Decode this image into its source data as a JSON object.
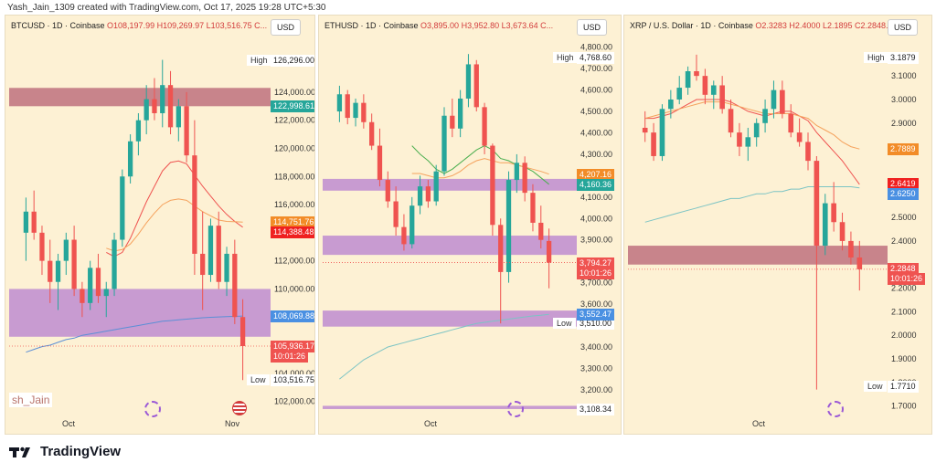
{
  "header": "Yash_Jain_1309 created with TradingView.com, Oct 17, 2025 19:28 UTC+5:30",
  "footer": {
    "brand": "TradingView",
    "signature": "sh_Jain"
  },
  "colors": {
    "panel_bg": "#fdf1d4",
    "up": "#26a69a",
    "down": "#ef5350",
    "zone_red": "#b65f73",
    "zone_purple": "#b57ed0"
  },
  "panels": [
    {
      "title_prefix": "BTCUSD · 1D · Coinbase ",
      "ohlc": "O108,197.99 H109,269.97 L103,516.75 C...",
      "currency": "USD",
      "y_ticks": [
        "124,000.00",
        "122,000.00",
        "120,000.00",
        "118,000.00",
        "116,000.00",
        "112,000.00",
        "110,000.00",
        "104,000.00",
        "102,000.00"
      ],
      "x_labels": [
        "Oct",
        "Nov"
      ],
      "high_label": "High",
      "high_value": "126,296.00",
      "low_label": "Low",
      "low_value": "103,516.75",
      "tags": [
        {
          "text": "122,998.61",
          "color": "#26a69a"
        },
        {
          "text": "114,751.76",
          "color": "#f28c28"
        },
        {
          "text": "114,388.48",
          "color": "#ef2020"
        },
        {
          "text": "108,069.88",
          "color": "#4a90e2"
        },
        {
          "text": "105,936.17",
          "color": "#ef5350"
        },
        {
          "text": "10:01:26",
          "color": "#ef5350"
        }
      ]
    },
    {
      "title_prefix": "ETHUSD · 1D · Coinbase ",
      "ohlc": "O3,895.00 H3,952.80 L3,673.64 C...",
      "currency": "USD",
      "y_ticks": [
        "4,800.00",
        "4,700.00",
        "4,600.00",
        "4,500.00",
        "4,400.00",
        "4,300.00",
        "4,100.00",
        "4,000.00",
        "3,900.00",
        "3,700.00",
        "3,600.00",
        "3,400.00",
        "3,300.00",
        "3,200.00"
      ],
      "x_labels": [
        "Oct"
      ],
      "high_label": "High",
      "high_value": "4,768.60",
      "low_label": "Low",
      "low_value": "3,510.00",
      "bottom_value": "3,108.34",
      "tags": [
        {
          "text": "4,207.16",
          "color": "#f28c28"
        },
        {
          "text": "4,160.36",
          "color": "#26a69a"
        },
        {
          "text": "3,794.27",
          "color": "#ef5350"
        },
        {
          "text": "10:01:26",
          "color": "#ef5350"
        },
        {
          "text": "3,552.47",
          "color": "#4a90e2"
        }
      ]
    },
    {
      "title_prefix": "XRP / U.S. Dollar · 1D · Coinbase ",
      "ohlc": "O2.3283 H2.4000 L2.1895 C2.2848...",
      "currency": "USD",
      "y_ticks": [
        "3.1000",
        "3.0000",
        "2.9000",
        "2.5000",
        "2.4000",
        "2.2000",
        "2.1000",
        "2.0000",
        "1.9000",
        "1.8000",
        "1.7000"
      ],
      "x_labels": [
        "Oct"
      ],
      "high_label": "High",
      "high_value": "3.1879",
      "low_label": "Low",
      "low_value": "1.7710",
      "tags": [
        {
          "text": "2.7889",
          "color": "#f28c28"
        },
        {
          "text": "2.6419",
          "color": "#ef2020"
        },
        {
          "text": "2.6250",
          "color": "#4a90e2"
        },
        {
          "text": "2.2848",
          "color": "#ef5350"
        },
        {
          "text": "10:01:26",
          "color": "#ef5350"
        }
      ]
    }
  ],
  "chart_data": [
    {
      "type": "candlestick",
      "symbol": "BTCUSD",
      "ylim": [
        101000,
        127500
      ],
      "candles": [
        [
          114000,
          116500,
          112000,
          115500
        ],
        [
          115500,
          117000,
          113500,
          114000
        ],
        [
          114000,
          114500,
          111000,
          112000
        ],
        [
          112000,
          113500,
          109000,
          110500
        ],
        [
          110500,
          112500,
          108500,
          112000
        ],
        [
          112000,
          114000,
          111000,
          113500
        ],
        [
          113500,
          114500,
          109500,
          110000
        ],
        [
          110000,
          110500,
          108000,
          109000
        ],
        [
          109000,
          112000,
          108500,
          111500
        ],
        [
          111500,
          112500,
          109000,
          109500
        ],
        [
          109500,
          110500,
          108000,
          110000
        ],
        [
          110000,
          114000,
          109500,
          113500
        ],
        [
          113500,
          118500,
          113000,
          118000
        ],
        [
          118000,
          121000,
          117500,
          120500
        ],
        [
          120500,
          122500,
          119500,
          122000
        ],
        [
          122000,
          124500,
          121000,
          123500
        ],
        [
          123500,
          125000,
          122000,
          122500
        ],
        [
          122500,
          126296,
          121500,
          124500
        ],
        [
          124500,
          125500,
          121000,
          121500
        ],
        [
          121500,
          123500,
          120500,
          123000
        ],
        [
          123000,
          124000,
          119000,
          119500
        ],
        [
          119500,
          122000,
          111000,
          112500
        ],
        [
          112500,
          115500,
          108500,
          111000
        ],
        [
          111000,
          115000,
          110500,
          114500
        ],
        [
          114500,
          115500,
          110000,
          110500
        ],
        [
          110500,
          113000,
          109500,
          112500
        ],
        [
          112500,
          113500,
          107500,
          108000
        ],
        [
          108000,
          109270,
          103517,
          105936
        ]
      ],
      "ma_series": [
        {
          "color": "#ef5350",
          "values": [
            null,
            null,
            null,
            null,
            null,
            null,
            null,
            null,
            null,
            null,
            112600,
            112300,
            112600,
            113600,
            114900,
            116200,
            117300,
            118400,
            119000,
            119100,
            118900,
            118100,
            117300,
            116600,
            115900,
            115300,
            114800,
            114390
          ]
        },
        {
          "color": "#f5a25d",
          "values": [
            null,
            null,
            null,
            null,
            null,
            null,
            null,
            null,
            null,
            null,
            112900,
            112700,
            112800,
            113200,
            113900,
            114700,
            115400,
            116000,
            116300,
            116400,
            116300,
            115900,
            115500,
            115200,
            114900,
            114800,
            114780,
            114750
          ]
        },
        {
          "color": "#5b8fd6",
          "values": [
            105500,
            105700,
            105900,
            106000,
            106200,
            106400,
            106500,
            106700,
            106800,
            106900,
            107000,
            107100,
            107200,
            107300,
            107400,
            107500,
            107600,
            107700,
            107750,
            107800,
            107850,
            107900,
            107950,
            107980,
            108010,
            108030,
            108050,
            108070
          ]
        }
      ],
      "zones": [
        {
          "from": 122998,
          "to": 124300,
          "color": "zone_red"
        },
        {
          "from": 106600,
          "to": 110000,
          "color": "zone_purple"
        }
      ]
    },
    {
      "type": "candlestick",
      "symbol": "ETHUSD",
      "ylim": [
        3080,
        4820
      ],
      "candles": [
        [
          4500,
          4620,
          4450,
          4580
        ],
        [
          4580,
          4600,
          4440,
          4470
        ],
        [
          4470,
          4560,
          4430,
          4540
        ],
        [
          4540,
          4580,
          4420,
          4450
        ],
        [
          4450,
          4490,
          4320,
          4340
        ],
        [
          4340,
          4420,
          4150,
          4180
        ],
        [
          4180,
          4220,
          4050,
          4080
        ],
        [
          4080,
          4150,
          3920,
          3960
        ],
        [
          3960,
          4020,
          3850,
          3880
        ],
        [
          3880,
          4100,
          3860,
          4060
        ],
        [
          4060,
          4200,
          4020,
          4150
        ],
        [
          4150,
          4180,
          4050,
          4080
        ],
        [
          4080,
          4250,
          4060,
          4220
        ],
        [
          4220,
          4520,
          4200,
          4480
        ],
        [
          4480,
          4560,
          4380,
          4420
        ],
        [
          4420,
          4600,
          4380,
          4560
        ],
        [
          4560,
          4768,
          4520,
          4720
        ],
        [
          4720,
          4740,
          4500,
          4520
        ],
        [
          4520,
          4540,
          4300,
          4340
        ],
        [
          4340,
          4350,
          3920,
          3970
        ],
        [
          3970,
          4000,
          3510,
          3750
        ],
        [
          3750,
          4220,
          3700,
          4180
        ],
        [
          4180,
          4300,
          4120,
          4260
        ],
        [
          4260,
          4290,
          4080,
          4120
        ],
        [
          4120,
          4160,
          3940,
          3980
        ],
        [
          3980,
          4060,
          3860,
          3900
        ],
        [
          3895,
          3953,
          3674,
          3794
        ]
      ],
      "ma_series": [
        {
          "color": "#4caf50",
          "values": [
            null,
            null,
            null,
            null,
            null,
            null,
            null,
            null,
            null,
            4340,
            4300,
            4270,
            4230,
            4210,
            4230,
            4260,
            4290,
            4320,
            4340,
            4320,
            4280,
            4270,
            4250,
            4240,
            4220,
            4190,
            4160
          ]
        },
        {
          "color": "#f5a25d",
          "values": [
            null,
            null,
            null,
            null,
            null,
            null,
            null,
            null,
            null,
            4210,
            4210,
            4200,
            4190,
            4190,
            4200,
            4220,
            4250,
            4270,
            4280,
            4270,
            4260,
            4260,
            4250,
            4240,
            4230,
            4220,
            4207
          ]
        },
        {
          "color": "#7cc4c4",
          "values": [
            3250,
            3280,
            3310,
            3340,
            3360,
            3380,
            3400,
            3410,
            3420,
            3430,
            3440,
            3450,
            3460,
            3470,
            3480,
            3490,
            3500,
            3510,
            3515,
            3520,
            3525,
            3530,
            3535,
            3540,
            3545,
            3548,
            3552
          ]
        }
      ],
      "zones": [
        {
          "from": 4130,
          "to": 4185,
          "color": "zone_purple"
        },
        {
          "from": 3830,
          "to": 3920,
          "color": "zone_purple"
        },
        {
          "from": 3495,
          "to": 3570,
          "color": "zone_purple"
        },
        {
          "from": 3110,
          "to": 3125,
          "color": "zone_purple"
        }
      ]
    },
    {
      "type": "candlestick",
      "symbol": "XRP",
      "ylim": [
        1.66,
        3.24
      ],
      "candles": [
        [
          2.88,
          2.95,
          2.82,
          2.86
        ],
        [
          2.86,
          2.9,
          2.74,
          2.76
        ],
        [
          2.76,
          2.98,
          2.74,
          2.96
        ],
        [
          2.96,
          3.04,
          2.92,
          3.0
        ],
        [
          3.0,
          3.1,
          2.98,
          3.05
        ],
        [
          3.05,
          3.14,
          3.02,
          3.12
        ],
        [
          3.12,
          3.19,
          3.08,
          3.1
        ],
        [
          3.1,
          3.13,
          2.98,
          3.02
        ],
        [
          3.02,
          3.08,
          2.96,
          3.06
        ],
        [
          3.06,
          3.1,
          2.94,
          2.96
        ],
        [
          2.96,
          3.0,
          2.84,
          2.86
        ],
        [
          2.86,
          2.9,
          2.76,
          2.8
        ],
        [
          2.8,
          2.88,
          2.74,
          2.84
        ],
        [
          2.84,
          2.92,
          2.8,
          2.9
        ],
        [
          2.9,
          3.0,
          2.86,
          2.96
        ],
        [
          2.96,
          3.08,
          2.92,
          3.04
        ],
        [
          3.04,
          3.08,
          2.92,
          2.94
        ],
        [
          2.94,
          2.98,
          2.84,
          2.86
        ],
        [
          2.86,
          2.92,
          2.8,
          2.82
        ],
        [
          2.82,
          2.86,
          2.7,
          2.74
        ],
        [
          2.74,
          2.76,
          1.77,
          2.38
        ],
        [
          2.38,
          2.6,
          2.34,
          2.56
        ],
        [
          2.56,
          2.65,
          2.44,
          2.48
        ],
        [
          2.48,
          2.52,
          2.36,
          2.4
        ],
        [
          2.4,
          2.44,
          2.3,
          2.33
        ],
        [
          2.33,
          2.4,
          2.19,
          2.28
        ]
      ],
      "ma_series": [
        {
          "color": "#ef5350",
          "values": [
            2.92,
            2.92,
            2.93,
            2.94,
            2.96,
            2.98,
            3.0,
            3.0,
            3.0,
            3.0,
            2.99,
            2.97,
            2.95,
            2.94,
            2.93,
            2.94,
            2.95,
            2.95,
            2.93,
            2.91,
            2.86,
            2.82,
            2.78,
            2.74,
            2.69,
            2.64
          ]
        },
        {
          "color": "#f5a25d",
          "values": [
            2.92,
            2.93,
            2.94,
            2.95,
            2.96,
            2.97,
            2.98,
            2.99,
            2.99,
            2.99,
            2.98,
            2.97,
            2.96,
            2.95,
            2.94,
            2.94,
            2.94,
            2.94,
            2.93,
            2.92,
            2.89,
            2.87,
            2.85,
            2.82,
            2.8,
            2.79
          ]
        },
        {
          "color": "#7cc4c4",
          "values": [
            2.48,
            2.49,
            2.5,
            2.51,
            2.52,
            2.53,
            2.54,
            2.55,
            2.56,
            2.57,
            2.58,
            2.58,
            2.59,
            2.6,
            2.6,
            2.61,
            2.61,
            2.62,
            2.62,
            2.63,
            2.63,
            2.63,
            2.63,
            2.63,
            2.63,
            2.625
          ]
        }
      ],
      "zones": [
        {
          "from": 2.3,
          "to": 2.38,
          "color": "zone_red"
        }
      ]
    }
  ]
}
